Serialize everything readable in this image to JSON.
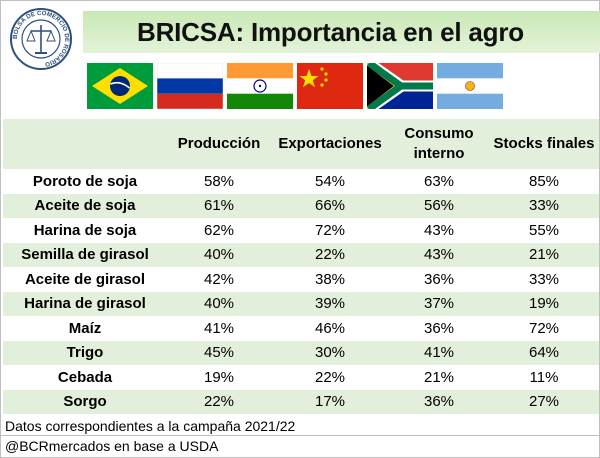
{
  "title": "BRICSA: Importancia en el agro",
  "logo_text": "BOLSA DE COMERCIO DE ROSARIO",
  "flags": [
    "Brasil",
    "Rusia",
    "India",
    "China",
    "Sudáfrica",
    "Argentina"
  ],
  "chart_data": {
    "type": "table",
    "columns": [
      "",
      "Producción",
      "Exportaciones",
      "Consumo interno",
      "Stocks finales"
    ],
    "rows": [
      {
        "label": "Poroto de soja",
        "values": [
          "58%",
          "54%",
          "63%",
          "85%"
        ]
      },
      {
        "label": "Aceite de soja",
        "values": [
          "61%",
          "66%",
          "56%",
          "33%"
        ]
      },
      {
        "label": "Harina de soja",
        "values": [
          "62%",
          "72%",
          "43%",
          "55%"
        ]
      },
      {
        "label": "Semilla de girasol",
        "values": [
          "40%",
          "22%",
          "43%",
          "21%"
        ]
      },
      {
        "label": "Aceite de girasol",
        "values": [
          "42%",
          "38%",
          "36%",
          "33%"
        ]
      },
      {
        "label": "Harina de girasol",
        "values": [
          "40%",
          "39%",
          "37%",
          "19%"
        ]
      },
      {
        "label": "Maíz",
        "values": [
          "41%",
          "46%",
          "36%",
          "72%"
        ]
      },
      {
        "label": "Trigo",
        "values": [
          "45%",
          "30%",
          "41%",
          "64%"
        ]
      },
      {
        "label": "Cebada",
        "values": [
          "19%",
          "22%",
          "21%",
          "11%"
        ]
      },
      {
        "label": "Sorgo",
        "values": [
          "22%",
          "17%",
          "36%",
          "27%"
        ]
      }
    ]
  },
  "footer": {
    "note": "Datos correspondientes a la campaña 2021/22",
    "source": "@BCRmercados en base a USDA"
  },
  "colors": {
    "band": "#e2efda",
    "title_band": "#c9e8b5"
  }
}
